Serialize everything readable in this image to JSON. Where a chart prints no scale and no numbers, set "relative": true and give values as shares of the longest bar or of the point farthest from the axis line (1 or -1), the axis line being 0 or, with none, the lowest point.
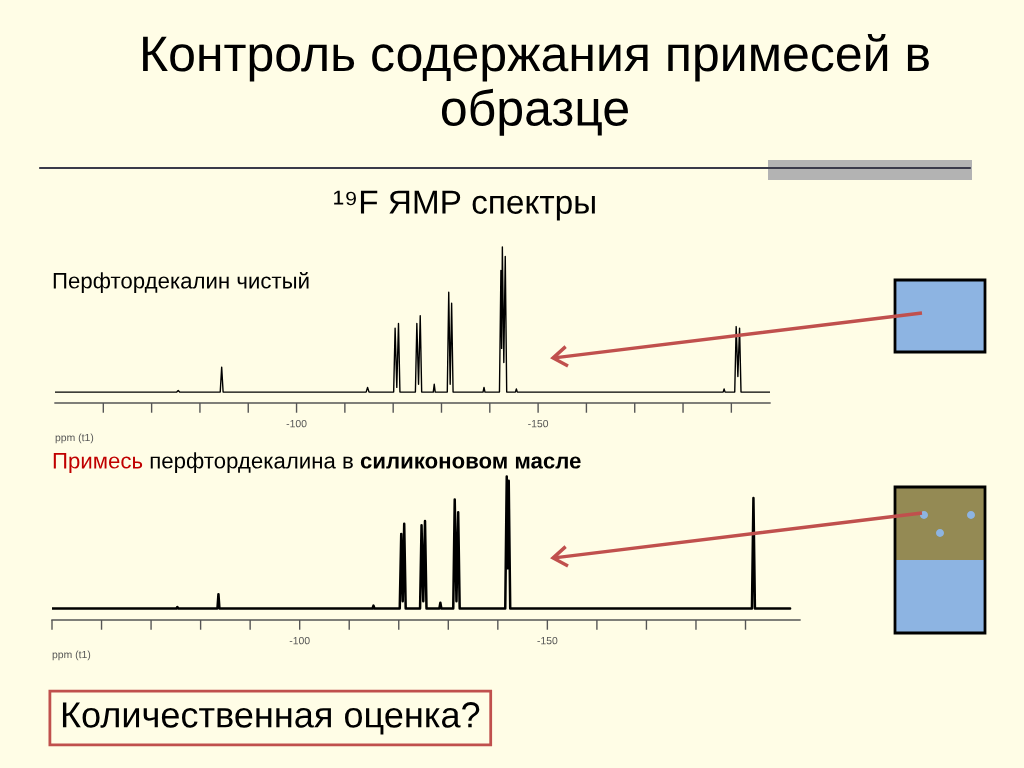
{
  "chart_data": [
    {
      "type": "line",
      "title": "Перфтордекалин чистый",
      "xlabel": "ppm (t1)",
      "relative": true,
      "color": "#000000",
      "x": [
        -50,
        -75.2,
        -75.5,
        -75.8,
        -84.2,
        -84.5,
        -84.8,
        -114.4,
        -114.7,
        -115.0,
        -120.1,
        -120.4,
        -120.75,
        -121.1,
        -121.4,
        -124.6,
        -124.9,
        -125.25,
        -125.6,
        -125.9,
        -128.3,
        -128.5,
        -128.7,
        -131.2,
        -131.5,
        -131.8,
        -132.1,
        -132.4,
        -138.6,
        -138.8,
        -139.0,
        -142.0,
        -142.3,
        -142.45,
        -142.6,
        -142.9,
        -143.2,
        -143.5,
        -145.3,
        -145.5,
        -145.7,
        -188.3,
        -188.5,
        -188.7,
        -190.7,
        -191.0,
        -191.35,
        -191.7,
        -192.0,
        -198
      ],
      "values": [
        0.07,
        0.07,
        0.08,
        0.07,
        0.07,
        0.23,
        0.07,
        0.07,
        0.1,
        0.07,
        0.07,
        0.48,
        0.1,
        0.51,
        0.07,
        0.07,
        0.51,
        0.12,
        0.56,
        0.07,
        0.07,
        0.12,
        0.07,
        0.07,
        0.71,
        0.12,
        0.64,
        0.07,
        0.07,
        0.1,
        0.07,
        0.07,
        0.85,
        0.35,
        1.0,
        0.26,
        0.94,
        0.07,
        0.07,
        0.09,
        0.07,
        0.07,
        0.09,
        0.07,
        0.07,
        0.49,
        0.17,
        0.48,
        0.07,
        0.07
      ],
      "xlim": [
        -50,
        -198
      ],
      "xticks": [
        {
          "value": -60,
          "label": null
        },
        {
          "value": -70,
          "label": null
        },
        {
          "value": -80,
          "label": null
        },
        {
          "value": -90,
          "label": null
        },
        -100,
        {
          "value": -110,
          "label": null
        },
        {
          "value": -120,
          "label": null
        },
        {
          "value": -130,
          "label": null
        },
        {
          "value": -140,
          "label": null
        },
        -150,
        {
          "value": -160,
          "label": null
        },
        {
          "value": -170,
          "label": null
        },
        {
          "value": -180,
          "label": null
        },
        {
          "value": -190,
          "label": null
        }
      ],
      "annotations": [
        "Контроль содержания примесей в образце",
        "¹⁹F ЯМР спектры"
      ]
    },
    {
      "type": "line",
      "title": "Примесь перфтордекалина в силиконовом масле",
      "xlabel": "ppm (t1)",
      "relative": true,
      "color": "#000000",
      "x": [
        -50,
        -75.1,
        -75.3,
        -75.5,
        -83.4,
        -83.6,
        -83.8,
        -114.7,
        -114.9,
        -115.1,
        -120.2,
        -120.5,
        -120.8,
        -121.1,
        -121.4,
        -124.3,
        -124.6,
        -124.95,
        -125.3,
        -125.6,
        -128.2,
        -128.4,
        -128.6,
        -131.0,
        -131.3,
        -131.65,
        -132.0,
        -132.3,
        -141.5,
        -141.8,
        -142.0,
        -142.2,
        -142.5,
        -191.3,
        -191.6,
        -191.9,
        -199
      ],
      "values": [
        0.08,
        0.08,
        0.09,
        0.08,
        0.08,
        0.18,
        0.08,
        0.08,
        0.1,
        0.08,
        0.08,
        0.6,
        0.13,
        0.67,
        0.08,
        0.08,
        0.66,
        0.13,
        0.69,
        0.08,
        0.08,
        0.12,
        0.08,
        0.08,
        0.84,
        0.13,
        0.75,
        0.08,
        0.08,
        1.0,
        0.36,
        0.97,
        0.08,
        0.08,
        0.85,
        0.08,
        0.08
      ],
      "xlim": [
        -50,
        -201
      ],
      "xticks": [
        {
          "value": -50,
          "label": null
        },
        {
          "value": -60,
          "label": null
        },
        {
          "value": -70,
          "label": null
        },
        {
          "value": -80,
          "label": null
        },
        {
          "value": -90,
          "label": null
        },
        -100,
        {
          "value": -110,
          "label": null
        },
        {
          "value": -120,
          "label": null
        },
        {
          "value": -130,
          "label": null
        },
        {
          "value": -140,
          "label": null
        },
        -150,
        {
          "value": -160,
          "label": null
        },
        {
          "value": -170,
          "label": null
        },
        {
          "value": -180,
          "label": null
        },
        {
          "value": -190,
          "label": null
        }
      ],
      "annotations": [
        "Количественная оценка?"
      ]
    }
  ]
}
